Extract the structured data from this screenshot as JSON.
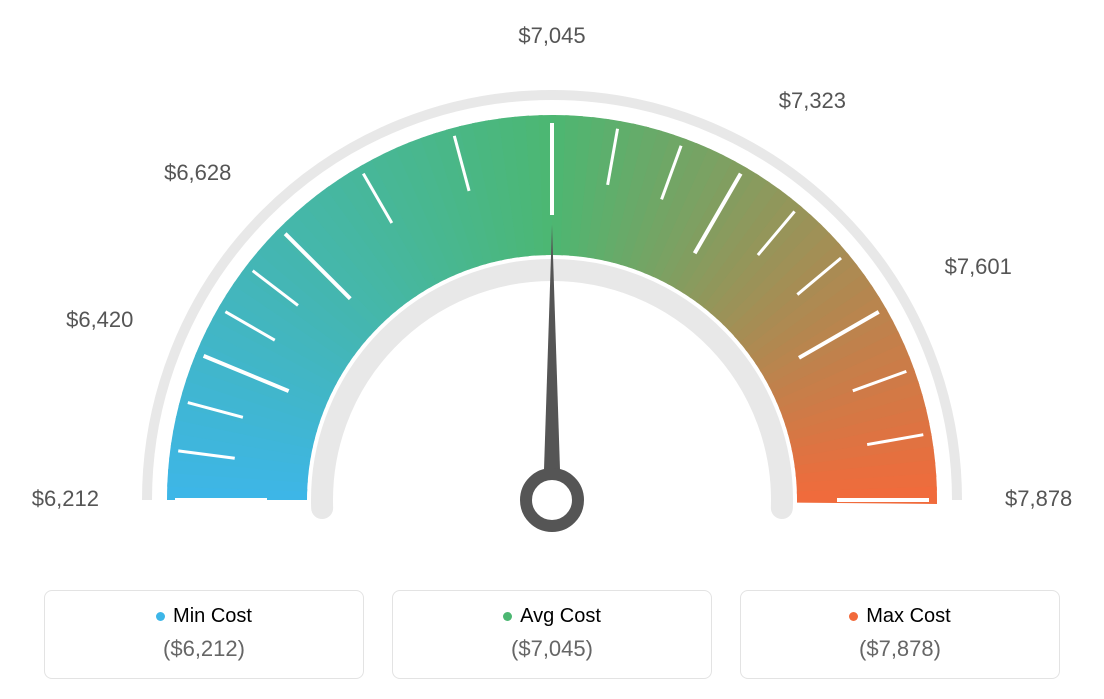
{
  "gauge": {
    "type": "gauge",
    "min": 6212,
    "max": 7878,
    "avg": 7045,
    "ticks": [
      {
        "value": 6212,
        "label": "$6,212"
      },
      {
        "value": 6420,
        "label": "$6,420"
      },
      {
        "value": 6628,
        "label": "$6,628"
      },
      {
        "value": 7045,
        "label": "$7,045"
      },
      {
        "value": 7323,
        "label": "$7,323"
      },
      {
        "value": 7601,
        "label": "$7,601"
      },
      {
        "value": 7878,
        "label": "$7,878"
      }
    ],
    "outer_arc_color": "#e8e8e8",
    "inner_arc_color": "#e8e8e8",
    "gradient_colors": {
      "low": "#3db6e8",
      "mid": "#4cb772",
      "high": "#f26a3b"
    },
    "tick_mark_color": "#ffffff",
    "needle_color": "#555555",
    "tick_label_color": "#555555",
    "tick_label_fontsize": 22,
    "background_color": "#ffffff",
    "outer_radius": 380,
    "inner_radius": 220,
    "arc_thickness": 140,
    "needle_value": 7045
  },
  "legend": {
    "min": {
      "label": "Min Cost",
      "value": "($6,212)",
      "color": "#3db6e8"
    },
    "avg": {
      "label": "Avg Cost",
      "value": "($7,045)",
      "color": "#4cb772"
    },
    "max": {
      "label": "Max Cost",
      "value": "($7,878)",
      "color": "#f26a3b"
    },
    "card_border_color": "#e3e3e3",
    "card_border_radius": 8,
    "label_fontsize": 20,
    "value_fontsize": 22,
    "value_color": "#666666"
  }
}
